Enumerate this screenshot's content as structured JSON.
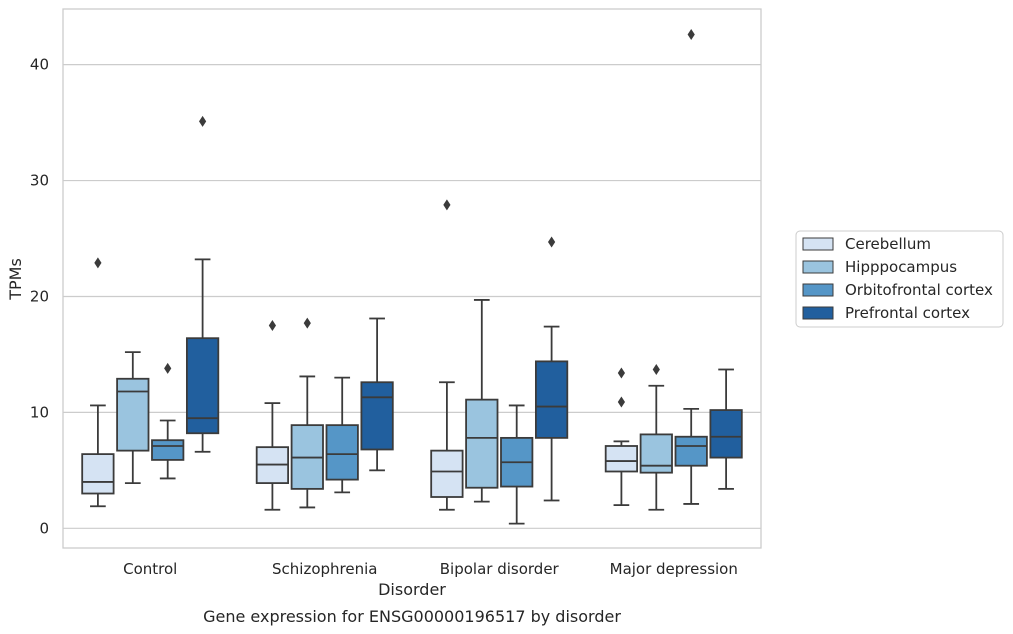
{
  "caption": "Gene expression for ENSG00000196517 by disorder",
  "chart_data": {
    "type": "box",
    "xlabel": "Disorder",
    "ylabel": "TPMs",
    "ylim": [
      -1.7,
      44.8
    ],
    "yticks": [
      0,
      10,
      20,
      30,
      40
    ],
    "grid": "horizontal",
    "legend_position": "right",
    "categories": [
      "Control",
      "Schizophrenia",
      "Bipolar disorder",
      "Major depression"
    ],
    "series": [
      {
        "name": "Cerebellum",
        "color": "#d5e3f3",
        "boxes": [
          {
            "whislo": 1.9,
            "q1": 3.0,
            "med": 4.0,
            "q3": 6.4,
            "whishi": 10.6,
            "fliers": [
              22.9
            ]
          },
          {
            "whislo": 1.6,
            "q1": 3.9,
            "med": 5.5,
            "q3": 7.0,
            "whishi": 10.8,
            "fliers": [
              17.5
            ]
          },
          {
            "whislo": 1.6,
            "q1": 2.7,
            "med": 4.9,
            "q3": 6.7,
            "whishi": 12.6,
            "fliers": [
              27.9
            ]
          },
          {
            "whislo": 2.0,
            "q1": 4.9,
            "med": 5.8,
            "q3": 7.1,
            "whishi": 7.5,
            "fliers": [
              13.4,
              10.9
            ]
          }
        ]
      },
      {
        "name": "Hipppocampus",
        "color": "#9ac4df",
        "boxes": [
          {
            "whislo": 3.9,
            "q1": 6.7,
            "med": 11.8,
            "q3": 12.9,
            "whishi": 15.2,
            "fliers": []
          },
          {
            "whislo": 1.8,
            "q1": 3.4,
            "med": 6.1,
            "q3": 8.9,
            "whishi": 13.1,
            "fliers": [
              17.7
            ]
          },
          {
            "whislo": 2.3,
            "q1": 3.5,
            "med": 7.8,
            "q3": 11.1,
            "whishi": 19.7,
            "fliers": []
          },
          {
            "whislo": 1.6,
            "q1": 4.8,
            "med": 5.4,
            "q3": 8.1,
            "whishi": 12.3,
            "fliers": [
              13.7
            ]
          }
        ]
      },
      {
        "name": "Orbitofrontal cortex",
        "color": "#5596c7",
        "boxes": [
          {
            "whislo": 4.3,
            "q1": 5.9,
            "med": 7.1,
            "q3": 7.6,
            "whishi": 9.3,
            "fliers": [
              13.8
            ]
          },
          {
            "whislo": 3.1,
            "q1": 4.2,
            "med": 6.4,
            "q3": 8.9,
            "whishi": 13.0,
            "fliers": []
          },
          {
            "whislo": 0.4,
            "q1": 3.6,
            "med": 5.7,
            "q3": 7.8,
            "whishi": 10.6,
            "fliers": []
          },
          {
            "whislo": 2.1,
            "q1": 5.4,
            "med": 7.1,
            "q3": 7.9,
            "whishi": 10.3,
            "fliers": [
              42.6
            ]
          }
        ]
      },
      {
        "name": "Prefrontal cortex",
        "color": "#215f9e",
        "boxes": [
          {
            "whislo": 6.6,
            "q1": 8.2,
            "med": 9.5,
            "q3": 16.4,
            "whishi": 23.2,
            "fliers": [
              35.1
            ]
          },
          {
            "whislo": 5.0,
            "q1": 6.8,
            "med": 11.3,
            "q3": 12.6,
            "whishi": 18.1,
            "fliers": []
          },
          {
            "whislo": 2.4,
            "q1": 7.8,
            "med": 10.5,
            "q3": 14.4,
            "whishi": 17.4,
            "fliers": [
              24.7
            ]
          },
          {
            "whislo": 3.4,
            "q1": 6.1,
            "med": 7.9,
            "q3": 10.2,
            "whishi": 13.7,
            "fliers": []
          }
        ]
      }
    ]
  }
}
